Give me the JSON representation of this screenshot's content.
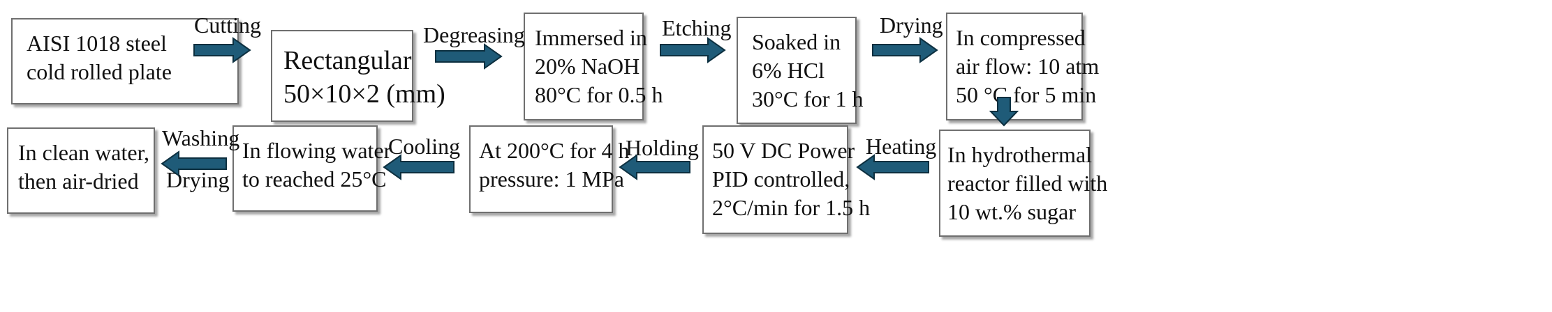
{
  "colors": {
    "arrow": "#1f5b78",
    "arrow_dark": "#0c2f3f",
    "border": "#6f6f6f"
  },
  "boxes": [
    {
      "id": "b1",
      "lines": [
        "AISI 1018 steel",
        "cold rolled plate"
      ]
    },
    {
      "id": "b2",
      "lines": [
        "Rectangular",
        "50×10×2 (mm)"
      ]
    },
    {
      "id": "b3",
      "lines": [
        "Immersed in",
        "20% NaOH",
        "80°C for 0.5 h"
      ]
    },
    {
      "id": "b4",
      "lines": [
        "Soaked in",
        "6% HCl",
        "30°C for 1 h"
      ]
    },
    {
      "id": "b5",
      "lines": [
        "In compressed",
        "air flow: 10 atm",
        "50 °C for 5 min"
      ]
    },
    {
      "id": "b6",
      "lines": [
        "In hydrothermal",
        "reactor filled with",
        "10 wt.% sugar"
      ]
    },
    {
      "id": "b7",
      "lines": [
        "50 V DC Power",
        "PID controlled,",
        "2°C/min for 1.5 h"
      ]
    },
    {
      "id": "b8",
      "lines": [
        "At 200°C for 4 h",
        "pressure: 1 MPa"
      ]
    },
    {
      "id": "b9",
      "lines": [
        "In flowing water",
        "to reached 25°C"
      ]
    },
    {
      "id": "b10",
      "lines": [
        "In clean water,",
        "then air-dried"
      ]
    }
  ],
  "steps": {
    "cutting": "Cutting",
    "degreasing": "Degreasing",
    "etching": "Etching",
    "drying": "Drying",
    "heating": "Heating",
    "holding": "Holding",
    "cooling": "Cooling",
    "washing": "Washing",
    "drying2": "Drying"
  }
}
